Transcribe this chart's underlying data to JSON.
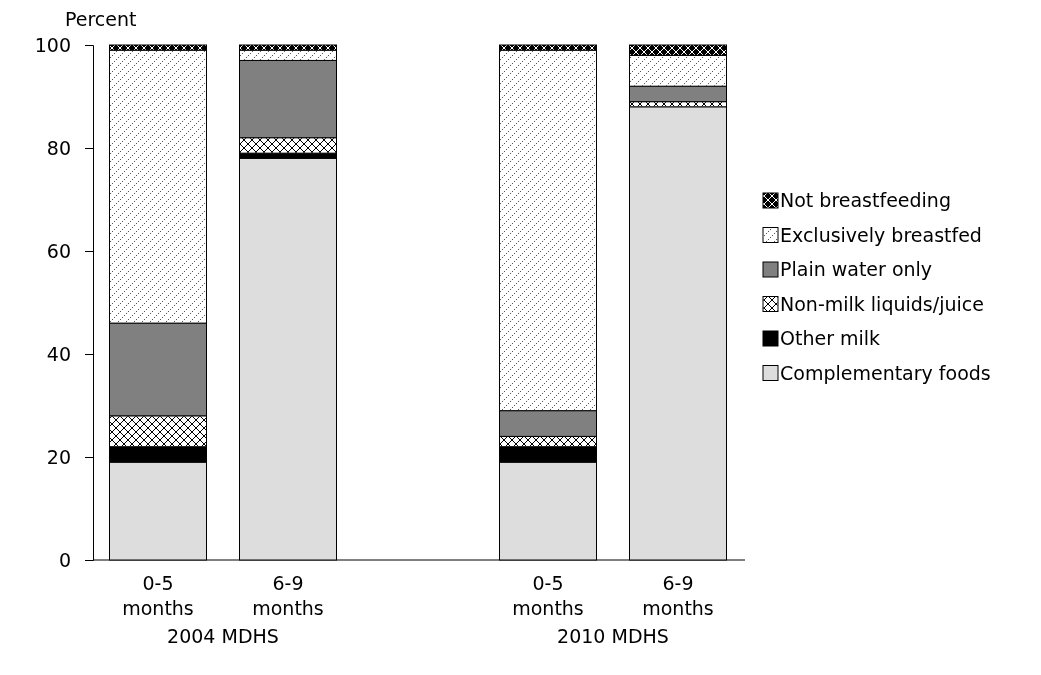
{
  "chart_data": {
    "type": "bar",
    "stacked": true,
    "ylabel": "Percent",
    "categories": [
      "0-5 months",
      "6-9 months",
      "0-5 months",
      "6-9 months"
    ],
    "annotations": [
      "2004 MDHS",
      "2010 MDHS"
    ],
    "series": [
      {
        "name": "Complementary foods",
        "color": "#dddddd",
        "values": [
          19,
          78,
          19,
          88
        ]
      },
      {
        "name": "Other milk",
        "color": "#000000",
        "values": [
          3,
          1,
          3,
          0
        ]
      },
      {
        "name": "Non-milk liquids/juice",
        "color": "#ffffff",
        "values": [
          6,
          3,
          2,
          1
        ]
      },
      {
        "name": "Plain water only",
        "color": "#808080",
        "values": [
          18,
          15,
          5,
          3
        ]
      },
      {
        "name": "Exclusively breastfed",
        "color": "#ffffff",
        "values": [
          53,
          2,
          70,
          6
        ]
      },
      {
        "name": "Not breastfeeding",
        "color": "#000000",
        "values": [
          1,
          1,
          1,
          2
        ]
      }
    ],
    "ylim": [
      0,
      100
    ],
    "yticks": [
      0,
      20,
      40,
      60,
      80,
      100
    ],
    "grid": false,
    "legend": "right"
  }
}
